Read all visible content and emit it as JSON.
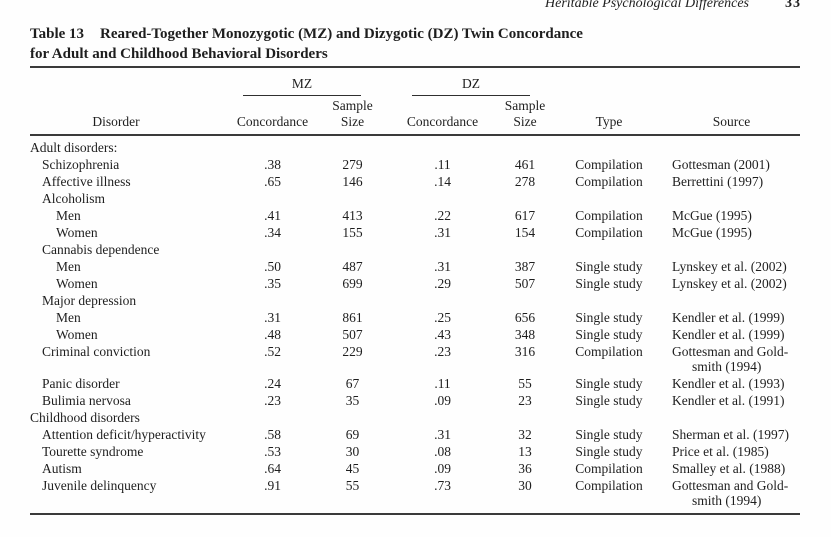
{
  "page": {
    "running_head": "Heritable Psychological Differences",
    "page_number": "33"
  },
  "table": {
    "label": "Table 13",
    "title_line1": "Reared-Together Monozygotic (MZ) and Dizygotic (DZ) Twin Concordance",
    "title_line2": "for Adult and Childhood Behavioral Disorders",
    "group_headers": {
      "mz": "MZ",
      "dz": "DZ"
    },
    "col_headers": {
      "disorder": "Disorder",
      "concordance": "Concordance",
      "sample_size_line1": "Sample",
      "sample_size_line2": "Size",
      "type": "Type",
      "source": "Source"
    },
    "rows": [
      {
        "label": "Adult disorders:",
        "indent": 0
      },
      {
        "label": "Schizophrenia",
        "indent": 1,
        "mz_conc": ".38",
        "mz_n": "279",
        "dz_conc": ".11",
        "dz_n": "461",
        "type": "Compilation",
        "source": [
          "Gottesman (2001)"
        ]
      },
      {
        "label": "Affective illness",
        "indent": 1,
        "mz_conc": ".65",
        "mz_n": "146",
        "dz_conc": ".14",
        "dz_n": "278",
        "type": "Compilation",
        "source": [
          "Berrettini (1997)"
        ]
      },
      {
        "label": "Alcoholism",
        "indent": 1
      },
      {
        "label": "Men",
        "indent": 2,
        "mz_conc": ".41",
        "mz_n": "413",
        "dz_conc": ".22",
        "dz_n": "617",
        "type": "Compilation",
        "source": [
          "McGue (1995)"
        ]
      },
      {
        "label": "Women",
        "indent": 2,
        "mz_conc": ".34",
        "mz_n": "155",
        "dz_conc": ".31",
        "dz_n": "154",
        "type": "Compilation",
        "source": [
          "McGue (1995)"
        ]
      },
      {
        "label": "Cannabis dependence",
        "indent": 1
      },
      {
        "label": "Men",
        "indent": 2,
        "mz_conc": ".50",
        "mz_n": "487",
        "dz_conc": ".31",
        "dz_n": "387",
        "type": "Single study",
        "source": [
          "Lynskey et al. (2002)"
        ]
      },
      {
        "label": "Women",
        "indent": 2,
        "mz_conc": ".35",
        "mz_n": "699",
        "dz_conc": ".29",
        "dz_n": "507",
        "type": "Single study",
        "source": [
          "Lynskey et al. (2002)"
        ]
      },
      {
        "label": "Major depression",
        "indent": 1
      },
      {
        "label": "Men",
        "indent": 2,
        "mz_conc": ".31",
        "mz_n": "861",
        "dz_conc": ".25",
        "dz_n": "656",
        "type": "Single study",
        "source": [
          "Kendler et al. (1999)"
        ]
      },
      {
        "label": "Women",
        "indent": 2,
        "mz_conc": ".48",
        "mz_n": "507",
        "dz_conc": ".43",
        "dz_n": "348",
        "type": "Single study",
        "source": [
          "Kendler et al. (1999)"
        ]
      },
      {
        "label": "Criminal conviction",
        "indent": 1,
        "mz_conc": ".52",
        "mz_n": "229",
        "dz_conc": ".23",
        "dz_n": "316",
        "type": "Compilation",
        "source": [
          "Gottesman and Gold-",
          "smith (1994)"
        ]
      },
      {
        "label": "Panic disorder",
        "indent": 1,
        "mz_conc": ".24",
        "mz_n": "67",
        "dz_conc": ".11",
        "dz_n": "55",
        "type": "Single study",
        "source": [
          "Kendler et al. (1993)"
        ]
      },
      {
        "label": "Bulimia nervosa",
        "indent": 1,
        "mz_conc": ".23",
        "mz_n": "35",
        "dz_conc": ".09",
        "dz_n": "23",
        "type": "Single study",
        "source": [
          "Kendler et al. (1991)"
        ]
      },
      {
        "label": "Childhood disorders",
        "indent": 0
      },
      {
        "label": "Attention deficit/hyperactivity",
        "indent": 1,
        "mz_conc": ".58",
        "mz_n": "69",
        "dz_conc": ".31",
        "dz_n": "32",
        "type": "Single study",
        "source": [
          "Sherman et al. (1997)"
        ]
      },
      {
        "label": "Tourette syndrome",
        "indent": 1,
        "mz_conc": ".53",
        "mz_n": "30",
        "dz_conc": ".08",
        "dz_n": "13",
        "type": "Single study",
        "source": [
          "Price et al. (1985)"
        ]
      },
      {
        "label": "Autism",
        "indent": 1,
        "mz_conc": ".64",
        "mz_n": "45",
        "dz_conc": ".09",
        "dz_n": "36",
        "type": "Compilation",
        "source": [
          "Smalley et al. (1988)"
        ]
      },
      {
        "label": "Juvenile delinquency",
        "indent": 1,
        "mz_conc": ".91",
        "mz_n": "55",
        "dz_conc": ".73",
        "dz_n": "30",
        "type": "Compilation",
        "source": [
          "Gottesman and Gold-",
          "smith (1994)"
        ]
      }
    ]
  },
  "chart_data": {
    "type": "table",
    "title": "Table 13 Reared-Together Monozygotic (MZ) and Dizygotic (DZ) Twin Concordance for Adult and Childhood Behavioral Disorders",
    "columns": [
      "Disorder",
      "MZ Concordance",
      "MZ Sample Size",
      "DZ Concordance",
      "DZ Sample Size",
      "Type",
      "Source"
    ],
    "rows": [
      [
        "Schizophrenia",
        0.38,
        279,
        0.11,
        461,
        "Compilation",
        "Gottesman (2001)"
      ],
      [
        "Affective illness",
        0.65,
        146,
        0.14,
        278,
        "Compilation",
        "Berrettini (1997)"
      ],
      [
        "Alcoholism - Men",
        0.41,
        413,
        0.22,
        617,
        "Compilation",
        "McGue (1995)"
      ],
      [
        "Alcoholism - Women",
        0.34,
        155,
        0.31,
        154,
        "Compilation",
        "McGue (1995)"
      ],
      [
        "Cannabis dependence - Men",
        0.5,
        487,
        0.31,
        387,
        "Single study",
        "Lynskey et al. (2002)"
      ],
      [
        "Cannabis dependence - Women",
        0.35,
        699,
        0.29,
        507,
        "Single study",
        "Lynskey et al. (2002)"
      ],
      [
        "Major depression - Men",
        0.31,
        861,
        0.25,
        656,
        "Single study",
        "Kendler et al. (1999)"
      ],
      [
        "Major depression - Women",
        0.48,
        507,
        0.43,
        348,
        "Single study",
        "Kendler et al. (1999)"
      ],
      [
        "Criminal conviction",
        0.52,
        229,
        0.23,
        316,
        "Compilation",
        "Gottesman and Goldsmith (1994)"
      ],
      [
        "Panic disorder",
        0.24,
        67,
        0.11,
        55,
        "Single study",
        "Kendler et al. (1993)"
      ],
      [
        "Bulimia nervosa",
        0.23,
        35,
        0.09,
        23,
        "Single study",
        "Kendler et al. (1991)"
      ],
      [
        "Attention deficit/hyperactivity",
        0.58,
        69,
        0.31,
        32,
        "Single study",
        "Sherman et al. (1997)"
      ],
      [
        "Tourette syndrome",
        0.53,
        30,
        0.08,
        13,
        "Single study",
        "Price et al. (1985)"
      ],
      [
        "Autism",
        0.64,
        45,
        0.09,
        36,
        "Compilation",
        "Smalley et al. (1988)"
      ],
      [
        "Juvenile delinquency",
        0.91,
        55,
        0.73,
        30,
        "Compilation",
        "Gottesman and Goldsmith (1994)"
      ]
    ]
  }
}
